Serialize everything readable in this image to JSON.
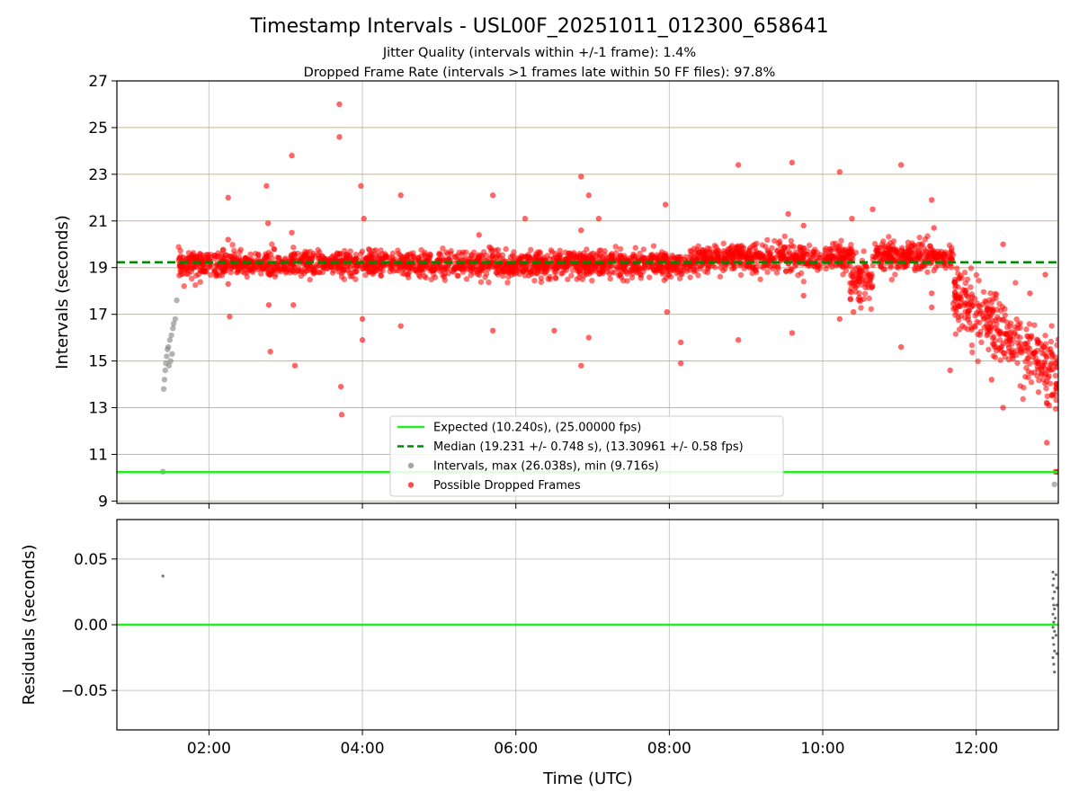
{
  "chart_data": [
    {
      "type": "scatter",
      "title": "Timestamp Intervals - USL00F_20251011_012300_658641",
      "subtitle_lines": [
        "Jitter Quality (intervals within +/-1 frame): 1.4%",
        "Dropped Frame Rate (intervals >1 frames late within 50 FF files): 97.8%"
      ],
      "xlabel": "",
      "ylabel": "Intervals (seconds)",
      "x_unit": "hours UTC",
      "xlim": [
        0.8,
        13.07
      ],
      "ylim": [
        8.9,
        27.0
      ],
      "x_ticks": [
        2,
        4,
        6,
        8,
        10,
        12
      ],
      "y_ticks": [
        9,
        11,
        13,
        15,
        17,
        19,
        21,
        23,
        25,
        27
      ],
      "y_tick_labels": [
        "9",
        "11",
        "13",
        "15",
        "17",
        "19",
        "21",
        "23",
        "25",
        "27"
      ],
      "hlines": [
        {
          "name": "Expected (10.240s), (25.00000 fps)",
          "y": 10.24,
          "color": "#22ee22",
          "style": "solid"
        },
        {
          "name": "Median (19.231 +/- 0.748 s), (13.30961 +/- 0.58 fps)",
          "y": 19.231,
          "color": "#008800",
          "style": "dashed"
        }
      ],
      "series": [
        {
          "name": "Intervals, max (26.038s), min (9.716s)",
          "color": "#808080",
          "points": [
            [
              1.4,
              10.26
            ],
            [
              1.41,
              13.8
            ],
            [
              1.42,
              14.2
            ],
            [
              1.43,
              14.6
            ],
            [
              1.44,
              14.9
            ],
            [
              1.45,
              15.2
            ],
            [
              1.46,
              15.5
            ],
            [
              1.47,
              15.6
            ],
            [
              1.48,
              14.8
            ],
            [
              1.49,
              15.9
            ],
            [
              1.5,
              15.0
            ],
            [
              1.51,
              16.1
            ],
            [
              1.52,
              15.3
            ],
            [
              1.53,
              16.4
            ],
            [
              1.54,
              16.6
            ],
            [
              1.56,
              16.8
            ],
            [
              1.58,
              17.6
            ],
            [
              13.02,
              9.716
            ]
          ]
        },
        {
          "name": "Possible Dropped Frames",
          "color": "#ff0000",
          "points": [
            [
              2.25,
              22.0
            ],
            [
              2.25,
              20.2
            ],
            [
              2.25,
              18.3
            ],
            [
              2.27,
              16.9
            ],
            [
              2.75,
              22.5
            ],
            [
              2.77,
              20.9
            ],
            [
              2.78,
              17.4
            ],
            [
              2.8,
              15.4
            ],
            [
              3.08,
              23.8
            ],
            [
              3.08,
              20.5
            ],
            [
              3.1,
              17.4
            ],
            [
              3.12,
              14.8
            ],
            [
              3.7,
              26.0
            ],
            [
              3.7,
              24.6
            ],
            [
              3.72,
              13.9
            ],
            [
              3.73,
              12.7
            ],
            [
              3.98,
              22.5
            ],
            [
              4.02,
              21.1
            ],
            [
              4.0,
              16.8
            ],
            [
              4.0,
              15.9
            ],
            [
              4.5,
              22.1
            ],
            [
              4.5,
              16.5
            ],
            [
              5.52,
              20.4
            ],
            [
              5.7,
              22.1
            ],
            [
              5.7,
              16.3
            ],
            [
              6.12,
              21.1
            ],
            [
              6.5,
              16.3
            ],
            [
              6.85,
              22.9
            ],
            [
              6.85,
              20.6
            ],
            [
              6.95,
              22.1
            ],
            [
              6.95,
              16.0
            ],
            [
              6.85,
              14.8
            ],
            [
              7.08,
              21.1
            ],
            [
              7.95,
              21.7
            ],
            [
              7.97,
              17.1
            ],
            [
              8.15,
              15.8
            ],
            [
              8.15,
              14.9
            ],
            [
              8.9,
              23.4
            ],
            [
              8.9,
              15.9
            ],
            [
              9.55,
              21.3
            ],
            [
              9.6,
              23.5
            ],
            [
              9.6,
              16.2
            ],
            [
              9.75,
              20.8
            ],
            [
              9.75,
              17.8
            ],
            [
              10.22,
              23.1
            ],
            [
              10.22,
              16.8
            ],
            [
              10.38,
              21.1
            ],
            [
              10.4,
              17.1
            ],
            [
              10.65,
              21.5
            ],
            [
              11.02,
              23.4
            ],
            [
              11.02,
              15.6
            ],
            [
              11.42,
              21.9
            ],
            [
              11.45,
              20.7
            ],
            [
              11.42,
              17.9
            ],
            [
              11.42,
              17.3
            ],
            [
              11.66,
              14.6
            ],
            [
              12.2,
              14.2
            ],
            [
              12.35,
              20.0
            ],
            [
              12.35,
              13.0
            ],
            [
              12.7,
              17.9
            ],
            [
              12.9,
              18.7
            ],
            [
              12.92,
              11.5
            ],
            [
              12.95,
              13.1
            ],
            [
              13.03,
              10.25
            ],
            [
              13.05,
              10.25
            ],
            [
              13.07,
              10.25
            ]
          ]
        }
      ],
      "dense_clusters": [
        {
          "x_range": [
            1.6,
            8.3
          ],
          "y_center": 19.15,
          "y_spread": 0.45,
          "trend": "flat"
        },
        {
          "x_range": [
            8.3,
            10.4
          ],
          "y_center": 19.4,
          "y_spread": 0.5,
          "trend": "flat"
        },
        {
          "x_range": [
            10.35,
            10.65
          ],
          "y_center": 18.5,
          "y_spread": 0.8,
          "trend": "flat"
        },
        {
          "x_range": [
            10.65,
            11.7
          ],
          "y_center": 19.5,
          "y_spread": 0.5,
          "trend": "flat"
        },
        {
          "x_range": [
            11.7,
            13.07
          ],
          "y_start": 17.8,
          "y_end": 14.4,
          "y_spread": 1.2,
          "trend": "falling"
        }
      ],
      "legend": {
        "location": "lower-center",
        "entries": [
          {
            "label": "Expected (10.240s), (25.00000 fps)",
            "kind": "line",
            "color": "#22ee22"
          },
          {
            "label": "Median (19.231 +/- 0.748 s), (13.30961 +/- 0.58 fps)",
            "kind": "dashed",
            "color": "#008800"
          },
          {
            "label": "Intervals, max (26.038s), min (9.716s)",
            "kind": "dot",
            "color": "#808080"
          },
          {
            "label": "Possible Dropped Frames",
            "kind": "dot",
            "color": "#ff0000"
          }
        ]
      }
    },
    {
      "type": "scatter",
      "title": "",
      "xlabel": "Time (UTC)",
      "ylabel": "Residuals (seconds)",
      "xlim": [
        0.8,
        13.07
      ],
      "ylim": [
        -0.08,
        0.08
      ],
      "x_ticks": [
        2,
        4,
        6,
        8,
        10,
        12
      ],
      "x_tick_labels": [
        "02:00",
        "04:00",
        "06:00",
        "08:00",
        "10:00",
        "12:00"
      ],
      "y_ticks": [
        -0.05,
        0.0,
        0.05
      ],
      "y_tick_labels": [
        "−0.05",
        "0.00",
        "0.05"
      ],
      "hlines": [
        {
          "y": 0.0,
          "color": "#22ee22",
          "style": "solid"
        }
      ],
      "series": [
        {
          "name": "residuals",
          "color": "#707070",
          "points": [
            [
              1.4,
              0.037
            ],
            [
              13.0,
              0.04
            ],
            [
              13.01,
              0.035
            ],
            [
              13.0,
              0.03
            ],
            [
              13.02,
              0.025
            ],
            [
              13.0,
              0.02
            ],
            [
              13.01,
              0.015
            ],
            [
              13.02,
              0.012
            ],
            [
              13.0,
              0.008
            ],
            [
              13.03,
              0.005
            ],
            [
              13.01,
              0.002
            ],
            [
              13.0,
              -0.002
            ],
            [
              13.02,
              -0.005
            ],
            [
              13.0,
              -0.01
            ],
            [
              13.01,
              -0.015
            ],
            [
              13.02,
              -0.02
            ],
            [
              13.0,
              -0.025
            ],
            [
              13.01,
              -0.03
            ],
            [
              13.02,
              -0.036
            ],
            [
              13.04,
              0.038
            ],
            [
              13.05,
              0.028
            ],
            [
              13.05,
              0.015
            ],
            [
              13.04,
              -0.008
            ],
            [
              13.05,
              -0.022
            ]
          ]
        }
      ]
    }
  ]
}
